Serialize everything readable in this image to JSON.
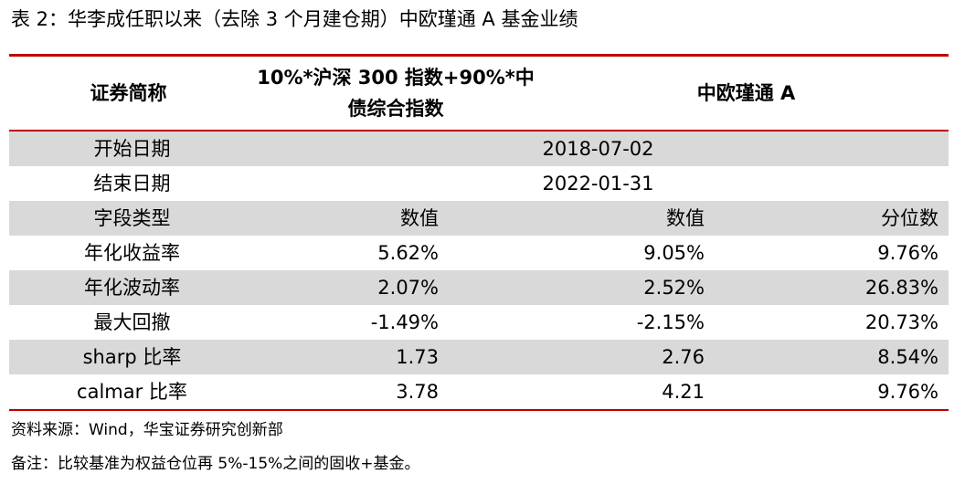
{
  "title": "表 2：华李成任职以来（去除 3 个月建仓期）中欧瑾通 A 基金业绩",
  "table": {
    "headers": {
      "col1": "证券简称",
      "col2_line1": "10%*沪深 300 指数+90%*中",
      "col2_line2": "债综合指数",
      "col34": "中欧瑾通 A"
    },
    "start": {
      "label": "开始日期",
      "value": "2018-07-02"
    },
    "end": {
      "label": "结束日期",
      "value": "2022-01-31"
    },
    "field_row": {
      "label": "字段类型",
      "c2": "数值",
      "c3": "数值",
      "c4": "分位数"
    },
    "rows": [
      {
        "label": "年化收益率",
        "v1": "5.62%",
        "v2": "9.05%",
        "v3": "9.76%"
      },
      {
        "label": "年化波动率",
        "v1": "2.07%",
        "v2": "2.52%",
        "v3": "26.83%"
      },
      {
        "label": "最大回撤",
        "v1": "-1.49%",
        "v2": "-2.15%",
        "v3": "20.73%"
      },
      {
        "label": "sharp 比率",
        "v1": "1.73",
        "v2": "2.76",
        "v3": "8.54%"
      },
      {
        "label": "calmar 比率",
        "v1": "3.78",
        "v2": "4.21",
        "v3": "9.76%"
      }
    ]
  },
  "notes": {
    "source": "资料来源：Wind，华宝证券研究创新部",
    "remark": "备注：比较基准为权益仓位再 5%-15%之间的固收+基金。"
  },
  "colors": {
    "accent_line": "#c00000",
    "shade": "#d9d9d9"
  }
}
